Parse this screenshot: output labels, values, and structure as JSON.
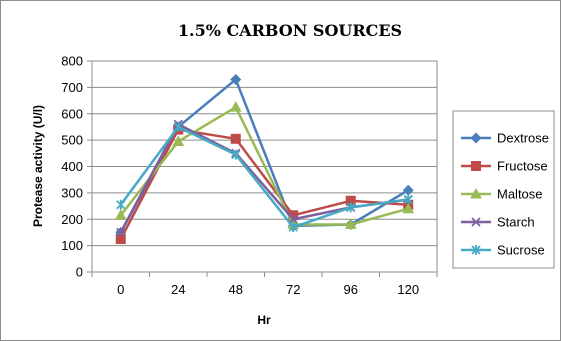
{
  "chart_data": {
    "type": "line",
    "title": "1.5% CARBON SOURCES",
    "xlabel": "Hr",
    "ylabel": "Protease activity (U/l)",
    "x": [
      0,
      24,
      48,
      72,
      96,
      120
    ],
    "ylim": [
      0,
      800
    ],
    "yticks": [
      0,
      100,
      200,
      300,
      400,
      500,
      600,
      700,
      800
    ],
    "grid": "horizontal",
    "legend_position": "right",
    "series": [
      {
        "name": "Dextrose",
        "color": "#4a7ebb",
        "marker": "diamond",
        "values": [
          150,
          550,
          730,
          175,
          180,
          310
        ]
      },
      {
        "name": "Fructose",
        "color": "#be4b48",
        "marker": "square",
        "values": [
          125,
          540,
          505,
          215,
          270,
          255
        ]
      },
      {
        "name": "Maltose",
        "color": "#98b954",
        "marker": "triangle",
        "values": [
          215,
          495,
          625,
          180,
          180,
          240
        ]
      },
      {
        "name": "Starch",
        "color": "#7d60a0",
        "marker": "x",
        "values": [
          150,
          560,
          450,
          200,
          245,
          275
        ]
      },
      {
        "name": "Sucrose",
        "color": "#46aac5",
        "marker": "star",
        "values": [
          255,
          550,
          445,
          170,
          245,
          275
        ]
      }
    ]
  }
}
